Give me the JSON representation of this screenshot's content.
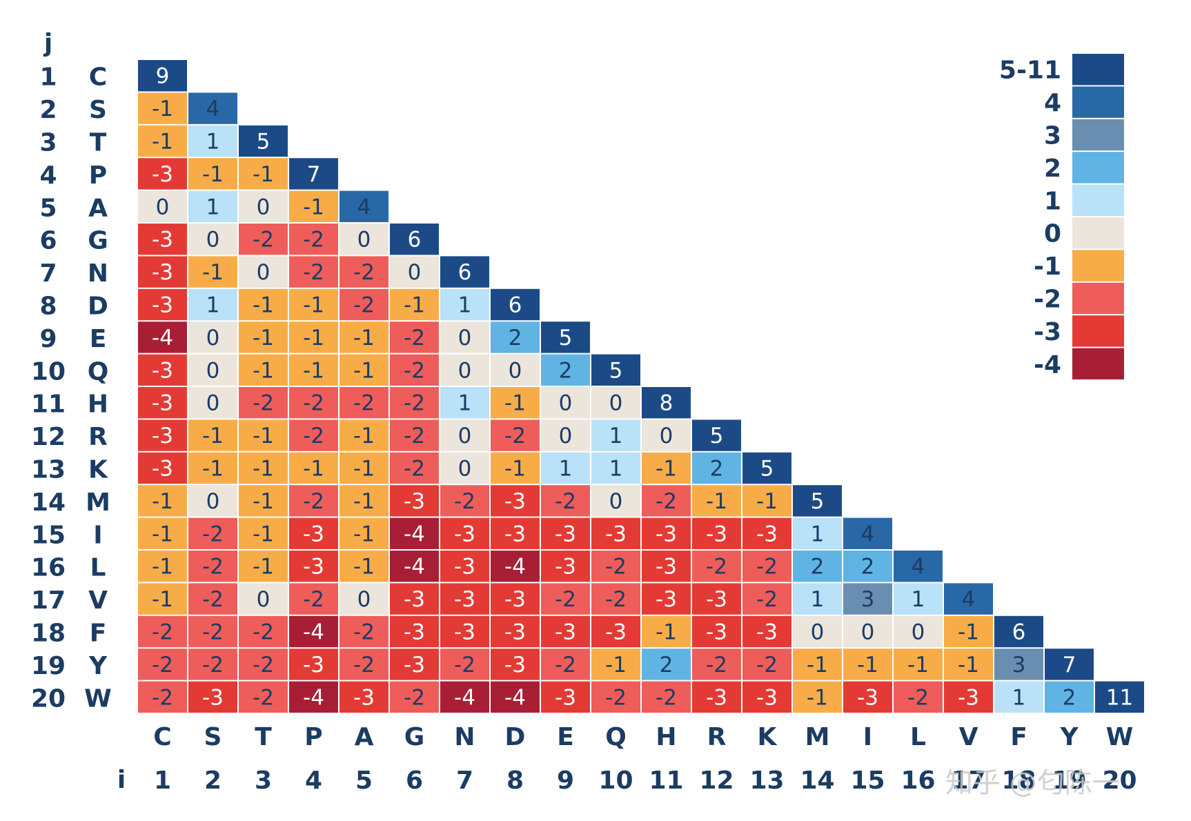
{
  "chart_data": {
    "type": "heatmap",
    "title": "",
    "row_axis_label": "j",
    "col_axis_label": "i",
    "amino_acids": [
      "C",
      "S",
      "T",
      "P",
      "A",
      "G",
      "N",
      "D",
      "E",
      "Q",
      "H",
      "R",
      "K",
      "M",
      "I",
      "L",
      "V",
      "F",
      "Y",
      "W"
    ],
    "indices": [
      "1",
      "2",
      "3",
      "4",
      "5",
      "6",
      "7",
      "8",
      "9",
      "10",
      "11",
      "12",
      "13",
      "14",
      "15",
      "16",
      "17",
      "18",
      "19",
      "20"
    ],
    "matrix": [
      [
        9
      ],
      [
        -1,
        4
      ],
      [
        -1,
        1,
        5
      ],
      [
        -3,
        -1,
        -1,
        7
      ],
      [
        0,
        1,
        0,
        -1,
        4
      ],
      [
        -3,
        0,
        -2,
        -2,
        0,
        6
      ],
      [
        -3,
        -1,
        0,
        -2,
        -2,
        0,
        6
      ],
      [
        -3,
        1,
        -1,
        -1,
        -2,
        -1,
        1,
        6
      ],
      [
        -4,
        0,
        -1,
        -1,
        -1,
        -2,
        0,
        2,
        5
      ],
      [
        -3,
        0,
        -1,
        -1,
        -1,
        -2,
        0,
        0,
        2,
        5
      ],
      [
        -3,
        0,
        -2,
        -2,
        -2,
        -2,
        1,
        -1,
        0,
        0,
        8
      ],
      [
        -3,
        -1,
        -1,
        -2,
        -1,
        -2,
        0,
        -2,
        0,
        1,
        0,
        5
      ],
      [
        -3,
        -1,
        -1,
        -1,
        -1,
        -2,
        0,
        -1,
        1,
        1,
        -1,
        2,
        5
      ],
      [
        -1,
        0,
        -1,
        -2,
        -1,
        -3,
        -2,
        -3,
        -2,
        0,
        -2,
        -1,
        -1,
        5
      ],
      [
        -1,
        -2,
        -1,
        -3,
        -1,
        -4,
        -3,
        -3,
        -3,
        -3,
        -3,
        -3,
        -3,
        1,
        4
      ],
      [
        -1,
        -2,
        -1,
        -3,
        -1,
        -4,
        -3,
        -4,
        -3,
        -2,
        -3,
        -2,
        -2,
        2,
        2,
        4
      ],
      [
        -1,
        -2,
        0,
        -2,
        0,
        -3,
        -3,
        -3,
        -2,
        -2,
        -3,
        -3,
        -2,
        1,
        3,
        1,
        4
      ],
      [
        -2,
        -2,
        -2,
        -4,
        -2,
        -3,
        -3,
        -3,
        -3,
        -3,
        -1,
        -3,
        -3,
        0,
        0,
        0,
        -1,
        6
      ],
      [
        -2,
        -2,
        -2,
        -3,
        -2,
        -3,
        -2,
        -3,
        -2,
        -1,
        2,
        -2,
        -2,
        -1,
        -1,
        -1,
        -1,
        3,
        7
      ],
      [
        -2,
        -3,
        -2,
        -4,
        -3,
        -2,
        -4,
        -4,
        -3,
        -2,
        -2,
        -3,
        -3,
        -1,
        -3,
        -2,
        -3,
        1,
        2,
        11
      ]
    ],
    "legend": [
      {
        "label": "5-11",
        "color": "#1c4a87"
      },
      {
        "label": "4",
        "color": "#2968a6"
      },
      {
        "label": "3",
        "color": "#6a8eaf"
      },
      {
        "label": "2",
        "color": "#5fb4e3"
      },
      {
        "label": "1",
        "color": "#b9e1f7"
      },
      {
        "label": "0",
        "color": "#ece5dc"
      },
      {
        "label": "-1",
        "color": "#f8ac48"
      },
      {
        "label": "-2",
        "color": "#ee5d5a"
      },
      {
        "label": "-3",
        "color": "#e43a35"
      },
      {
        "label": "-4",
        "color": "#a81f35"
      }
    ],
    "value_range": [
      -4,
      11
    ]
  },
  "watermark": "知乎 @匂陈一"
}
